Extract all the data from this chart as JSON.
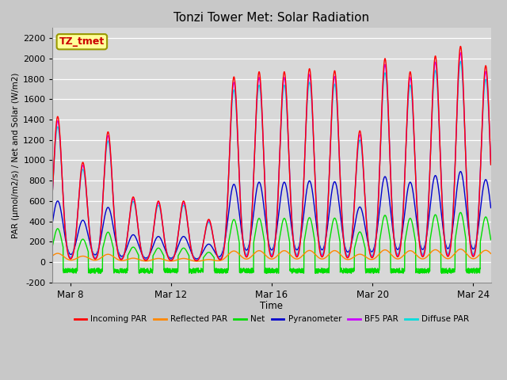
{
  "title": "Tonzi Tower Met: Solar Radiation",
  "xlabel": "Time",
  "ylabel": "PAR (μmol/m2/s) / Net and Solar (W/m2)",
  "ylim": [
    -200,
    2300
  ],
  "yticks": [
    -200,
    0,
    200,
    400,
    600,
    800,
    1000,
    1200,
    1400,
    1600,
    1800,
    2000,
    2200
  ],
  "xlim_days": [
    7.3,
    24.7
  ],
  "xtick_days": [
    8,
    12,
    16,
    20,
    24
  ],
  "xtick_labels": [
    "Mar 8",
    "Mar 12",
    "Mar 16",
    "Mar 20",
    "Mar 24"
  ],
  "fig_bg_color": "#c8c8c8",
  "axes_bg_color": "#d8d8d8",
  "series": [
    {
      "name": "Incoming PAR",
      "color": "#ff0000",
      "lw": 1.0
    },
    {
      "name": "Reflected PAR",
      "color": "#ff8800",
      "lw": 1.0
    },
    {
      "name": "Net",
      "color": "#00dd00",
      "lw": 1.0
    },
    {
      "name": "Pyranometer",
      "color": "#0000cc",
      "lw": 1.0
    },
    {
      "name": "BF5 PAR",
      "color": "#cc00ff",
      "lw": 1.0
    },
    {
      "name": "Diffuse PAR",
      "color": "#00dddd",
      "lw": 1.0
    }
  ],
  "annotation_text": "TZ_tmet",
  "par_peaks": {
    "7": 1430,
    "8": 980,
    "9": 1280,
    "10": 640,
    "11": 600,
    "12": 600,
    "13": 420,
    "14": 1820,
    "15": 1870,
    "16": 1870,
    "17": 1900,
    "18": 1880,
    "19": 1290,
    "20": 2000,
    "21": 1870,
    "22": 2025,
    "23": 2120,
    "24": 1930
  }
}
